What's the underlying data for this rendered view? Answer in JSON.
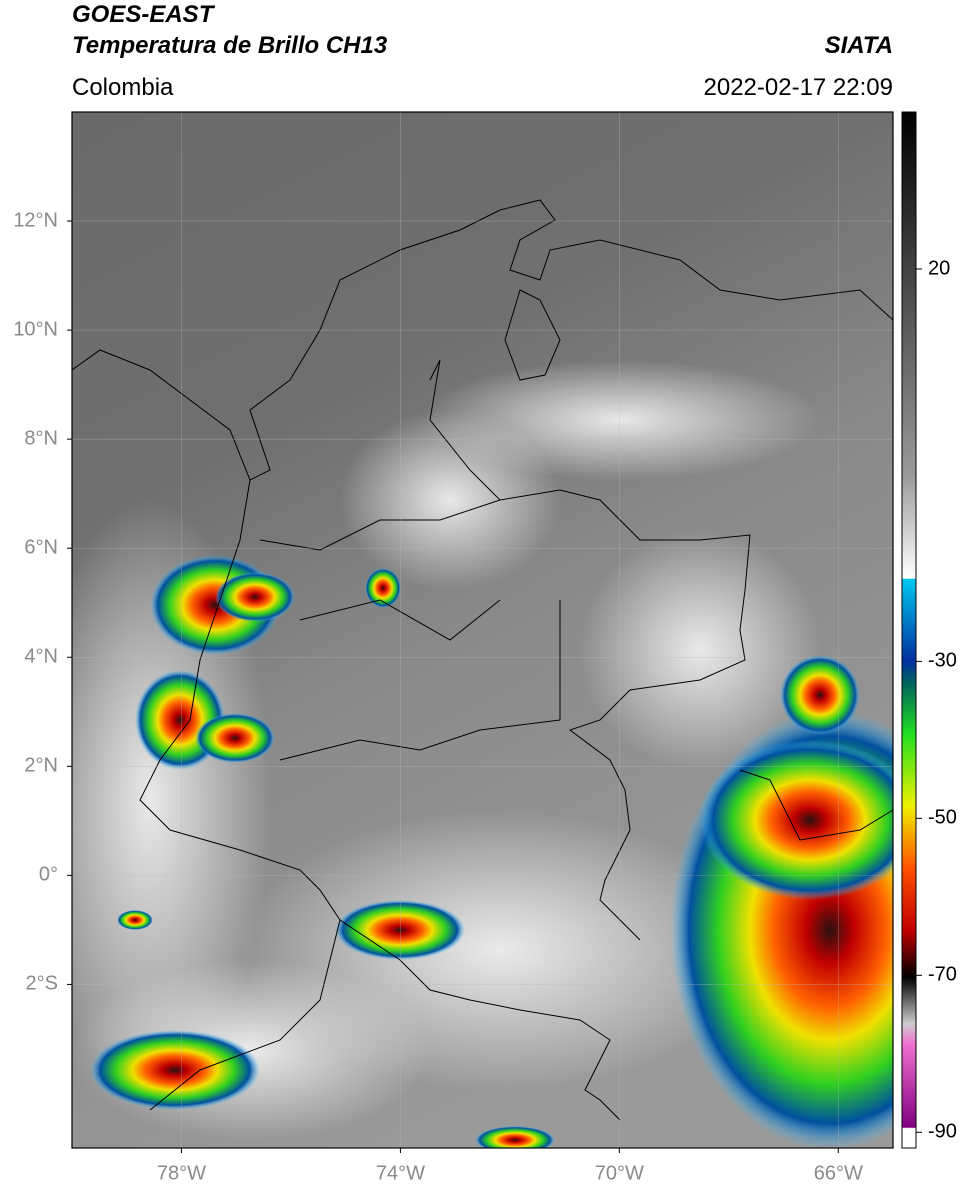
{
  "header": {
    "title": "GOES-EAST",
    "subtitle": "Temperatura de Brillo CH13",
    "source": "SIATA",
    "region": "Colombia",
    "datetime": "2022-02-17 22:09"
  },
  "map": {
    "xlim": [
      -80,
      -65
    ],
    "ylim": [
      -5,
      14
    ],
    "xticks": [
      {
        "value": -78,
        "label": "78°W"
      },
      {
        "value": -74,
        "label": "74°W"
      },
      {
        "value": -70,
        "label": "70°W"
      },
      {
        "value": -66,
        "label": "66°W"
      }
    ],
    "yticks": [
      {
        "value": 12,
        "label": "12°N"
      },
      {
        "value": 10,
        "label": "10°N"
      },
      {
        "value": 8,
        "label": "8°N"
      },
      {
        "value": 6,
        "label": "6°N"
      },
      {
        "value": 4,
        "label": "4°N"
      },
      {
        "value": 2,
        "label": "2°N"
      },
      {
        "value": 0,
        "label": "0°"
      },
      {
        "value": -2,
        "label": "2°S"
      }
    ],
    "grid": true
  },
  "colorbar": {
    "lim": [
      -92,
      40
    ],
    "ticks": [
      20,
      -30,
      -50,
      -70,
      -90
    ]
  }
}
